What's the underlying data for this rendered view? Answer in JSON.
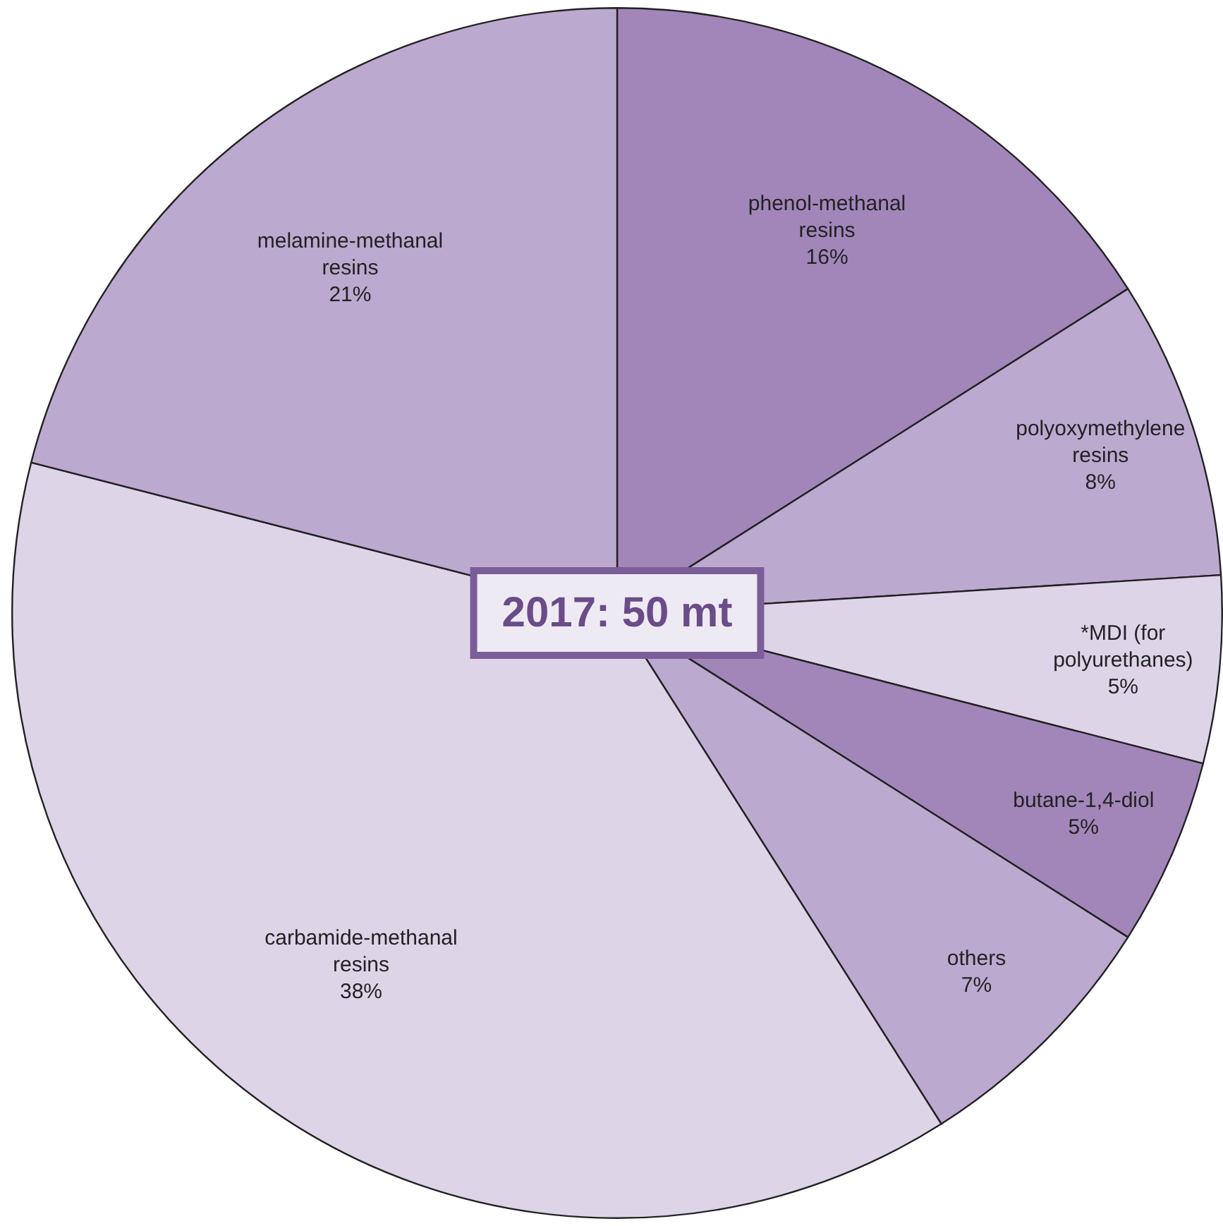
{
  "chart_data": {
    "type": "pie",
    "categories": [
      "phenol-methanal resins",
      "polyoxymethylene resins",
      "*MDI (for polyurethanes)",
      "butane-1,4-diol",
      "others",
      "carbamide-methanal resins",
      "melamine-methanal resins"
    ],
    "values": [
      16,
      8,
      5,
      5,
      7,
      38,
      21
    ],
    "value_labels": [
      "16%",
      "8%",
      "5%",
      "5%",
      "7%",
      "38%",
      "21%"
    ],
    "colors": [
      "#a286ba",
      "#bca9d0",
      "#ded4e8",
      "#a286ba",
      "#bca9d0",
      "#ded4e8",
      "#bca9d0"
    ],
    "annotations": [
      "2017: 50 mt"
    ],
    "legend": false
  }
}
